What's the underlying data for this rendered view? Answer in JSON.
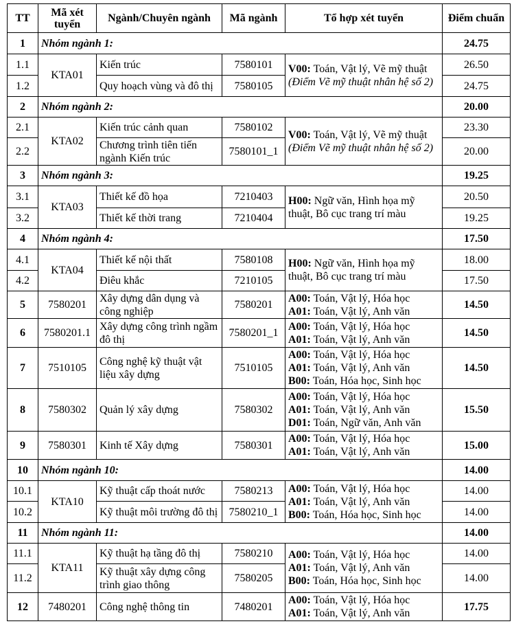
{
  "header": {
    "tt": "TT",
    "ma_xet_tuyen": "Mã xét tuyển",
    "nganh": "Ngành/Chuyên ngành",
    "ma_nganh": "Mã ngành",
    "to_hop": "Tổ hợp xét tuyển",
    "diem": "Điểm chuẩn"
  },
  "rows": [
    {
      "type": "group",
      "tt": "1",
      "title": "Nhóm ngành 1:",
      "score": "24.75",
      "code": "KTA01",
      "combo": [
        {
          "code": "V00:",
          "subjects": " Toán, Vật lý, Vẽ mỹ thuật"
        }
      ],
      "note": "(Điểm Vẽ mỹ thuật nhân hệ số 2)",
      "items": [
        {
          "tt": "1.1",
          "name": "Kiến trúc",
          "ma": "7580101",
          "score": "26.50"
        },
        {
          "tt": "1.2",
          "name": "Quy hoạch vùng và đô thị",
          "ma": "7580105",
          "score": "24.75"
        }
      ]
    },
    {
      "type": "group",
      "tt": "2",
      "title": "Nhóm ngành 2:",
      "score": "20.00",
      "code": "KTA02",
      "combo": [
        {
          "code": "V00:",
          "subjects": " Toán, Vật lý, Vẽ mỹ thuật"
        }
      ],
      "note": "(Điểm Vẽ mỹ thuật nhân hệ số 2)",
      "items": [
        {
          "tt": "2.1",
          "name": "Kiến trúc cảnh quan",
          "ma": "7580102",
          "score": "23.30"
        },
        {
          "tt": "2.2",
          "name": "Chương trình tiên tiến ngành Kiến trúc",
          "ma": "7580101_1",
          "score": "20.00"
        }
      ]
    },
    {
      "type": "group",
      "tt": "3",
      "title": "Nhóm ngành 3:",
      "score": "19.25",
      "code": "KTA03",
      "combo": [
        {
          "code": "H00:",
          "subjects": " Ngữ văn, Hình họa mỹ thuật, Bô cục trang trí màu"
        }
      ],
      "items": [
        {
          "tt": "3.1",
          "name": "Thiết kế đồ họa",
          "ma": "7210403",
          "score": "20.50"
        },
        {
          "tt": "3.2",
          "name": "Thiết kế thời trang",
          "ma": "7210404",
          "score": "19.25"
        }
      ]
    },
    {
      "type": "group",
      "tt": "4",
      "title": "Nhóm ngành 4:",
      "score": "17.50",
      "code": "KTA04",
      "combo": [
        {
          "code": "H00:",
          "subjects": " Ngữ văn, Hình họa mỹ thuật, Bô cục trang trí màu"
        }
      ],
      "items": [
        {
          "tt": "4.1",
          "name": "Thiết kế nội thất",
          "ma": "7580108",
          "score": "18.00"
        },
        {
          "tt": "4.2",
          "name": "Điêu khắc",
          "ma": "7210105",
          "score": "17.50"
        }
      ]
    },
    {
      "type": "single",
      "tt": "5",
      "code": "7580201",
      "name": "Xây dựng dân dụng và công nghiệp",
      "ma": "7580201",
      "score": "14.50",
      "combo": [
        {
          "code": "A00:",
          "subjects": " Toán, Vật lý, Hóa học"
        },
        {
          "code": "A01:",
          "subjects": " Toán, Vật lý, Anh văn"
        }
      ]
    },
    {
      "type": "single",
      "tt": "6",
      "code": "7580201.1",
      "name": "Xây dựng công trình ngầm đô thị",
      "ma": "7580201_1",
      "score": "14.50",
      "combo": [
        {
          "code": "A00:",
          "subjects": " Toán, Vật lý, Hóa học"
        },
        {
          "code": "A01:",
          "subjects": " Toán, Vật lý, Anh văn"
        }
      ]
    },
    {
      "type": "single",
      "tt": "7",
      "code": "7510105",
      "name": "Công nghệ kỹ thuật vật liệu xây dựng",
      "ma": "7510105",
      "score": "14.50",
      "combo": [
        {
          "code": "A00:",
          "subjects": " Toán, Vật lý, Hóa học"
        },
        {
          "code": "A01:",
          "subjects": " Toán, Vật lý, Anh văn"
        },
        {
          "code": "B00:",
          "subjects": " Toán, Hóa học, Sinh học"
        }
      ]
    },
    {
      "type": "single",
      "tt": "8",
      "code": "7580302",
      "name": "Quản lý xây dựng",
      "ma": "7580302",
      "score": "15.50",
      "combo": [
        {
          "code": "A00:",
          "subjects": " Toán, Vật lý, Hóa học"
        },
        {
          "code": "A01:",
          "subjects": " Toán, Vật lý, Anh văn"
        },
        {
          "code": "D01:",
          "subjects": " Toán, Ngữ văn, Anh văn"
        }
      ]
    },
    {
      "type": "single",
      "tt": "9",
      "code": "7580301",
      "name": "Kinh tế Xây dựng",
      "ma": "7580301",
      "score": "15.00",
      "combo": [
        {
          "code": "A00:",
          "subjects": " Toán, Vật lý, Hóa học"
        },
        {
          "code": "A01:",
          "subjects": " Toán, Vật lý, Anh văn"
        }
      ]
    },
    {
      "type": "group",
      "tt": "10",
      "title": "Nhóm ngành 10:",
      "score": "14.00",
      "code": "KTA10",
      "combo": [
        {
          "code": "A00:",
          "subjects": " Toán, Vật lý, Hóa học"
        },
        {
          "code": "A01:",
          "subjects": " Toán, Vật lý, Anh văn"
        },
        {
          "code": "B00:",
          "subjects": " Toán, Hóa học, Sinh học"
        }
      ],
      "items": [
        {
          "tt": "10.1",
          "name": "Kỹ thuật cấp thoát nước",
          "ma": "7580213",
          "score": "14.00"
        },
        {
          "tt": "10.2",
          "name": "Kỹ thuật môi trường đô thị",
          "ma": "7580210_1",
          "score": "14.00"
        }
      ]
    },
    {
      "type": "group",
      "tt": "11",
      "title": "Nhóm ngành 11:",
      "score": "14.00",
      "code": "KTA11",
      "combo": [
        {
          "code": "A00:",
          "subjects": " Toán, Vật lý, Hóa học"
        },
        {
          "code": "A01:",
          "subjects": " Toán, Vật lý, Anh văn"
        },
        {
          "code": "B00:",
          "subjects": " Toán, Hóa học, Sinh học"
        }
      ],
      "items": [
        {
          "tt": "11.1",
          "name": "Kỹ thuật hạ tầng đô thị",
          "ma": "7580210",
          "score": "14.00"
        },
        {
          "tt": "11.2",
          "name": "Kỹ thuật xây dựng công trình giao thông",
          "ma": "7580205",
          "score": "14.00"
        }
      ]
    },
    {
      "type": "single",
      "tt": "12",
      "code": "7480201",
      "name": "Công nghệ thông tin",
      "ma": "7480201",
      "score": "17.75",
      "combo": [
        {
          "code": "A00:",
          "subjects": " Toán, Vật lý, Hóa học"
        },
        {
          "code": "A01:",
          "subjects": " Toán, Vật lý, Anh văn"
        }
      ]
    }
  ]
}
